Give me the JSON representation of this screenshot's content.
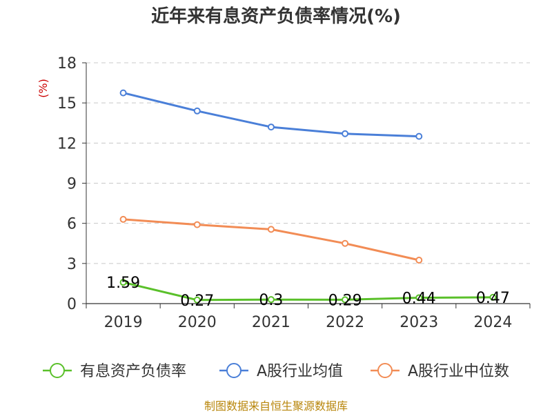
{
  "chart_data": {
    "type": "line",
    "title": "近年来有息资产负债率情况(%)",
    "y_unit": "(%)",
    "categories": [
      "2019",
      "2020",
      "2021",
      "2022",
      "2023",
      "2024"
    ],
    "ylim": [
      0,
      18
    ],
    "yticks": [
      0,
      3,
      6,
      9,
      12,
      15,
      18
    ],
    "ytick_labels": [
      "0",
      "3",
      "6",
      "9",
      "12",
      "15",
      "18"
    ],
    "grid": "horizontal-dashed",
    "legend_position": "bottom",
    "series": [
      {
        "name": "有息资产负债率",
        "color": "#5ac02a",
        "values": [
          1.59,
          0.27,
          0.3,
          0.29,
          0.44,
          0.47
        ],
        "labels": [
          "1.59",
          "0.27",
          "0.3",
          "0.29",
          "0.44",
          "0.47"
        ]
      },
      {
        "name": "A股行业均值",
        "color": "#4a7fd8",
        "values": [
          15.75,
          14.4,
          13.2,
          12.7,
          12.5,
          null
        ]
      },
      {
        "name": "A股行业中位数",
        "color": "#f28c55",
        "values": [
          6.3,
          5.9,
          5.55,
          4.5,
          3.25,
          null
        ]
      }
    ]
  },
  "source": "制图数据来自恒生聚源数据库"
}
